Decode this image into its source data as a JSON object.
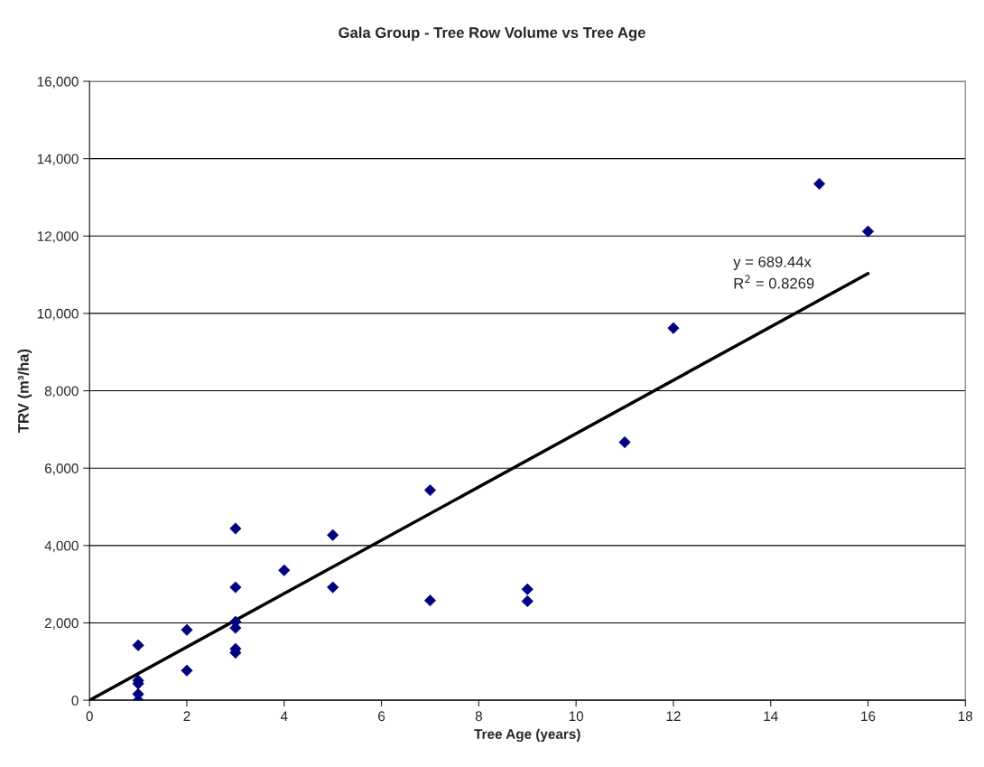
{
  "chart_data": {
    "type": "scatter",
    "title": "Gala Group - Tree Row Volume vs Tree Age",
    "xlabel": "Tree Age (years)",
    "ylabel": "TRV (m³/ha)",
    "grid": "y",
    "legend": false,
    "xlim": [
      0,
      18
    ],
    "xticks": [
      0,
      2,
      4,
      6,
      8,
      10,
      12,
      14,
      16,
      18
    ],
    "ylim": [
      0,
      16000
    ],
    "yticks": [
      {
        "value": 0,
        "label": "0"
      },
      {
        "value": 2000,
        "label": "2,000"
      },
      {
        "value": 4000,
        "label": "4,000"
      },
      {
        "value": 6000,
        "label": "6,000"
      },
      {
        "value": 8000,
        "label": "8,000"
      },
      {
        "value": 10000,
        "label": "10,000"
      },
      {
        "value": 12000,
        "label": "12,000"
      },
      {
        "value": 14000,
        "label": "14,000"
      },
      {
        "value": 16000,
        "label": "16,000"
      }
    ],
    "annotations": [
      "y = 689.44x",
      "R$^{2}$ = 0.8269"
    ],
    "series": [
      {
        "marker": "diamond",
        "color": "#000080",
        "x": [
          1,
          1,
          1,
          1,
          1,
          2,
          2,
          3,
          3,
          3,
          3,
          3,
          3,
          4,
          5,
          5,
          7,
          7,
          9,
          9,
          11,
          12,
          15,
          16
        ],
        "values": [
          1420,
          510,
          430,
          160,
          0,
          1820,
          770,
          4440,
          2920,
          2030,
          1870,
          1330,
          1230,
          3360,
          4270,
          2920,
          5430,
          2580,
          2870,
          2560,
          6670,
          9620,
          13350,
          12120
        ]
      },
      {
        "type": "line",
        "color": "#000000",
        "x": [
          0,
          16
        ],
        "values": [
          0,
          11030
        ]
      }
    ]
  }
}
